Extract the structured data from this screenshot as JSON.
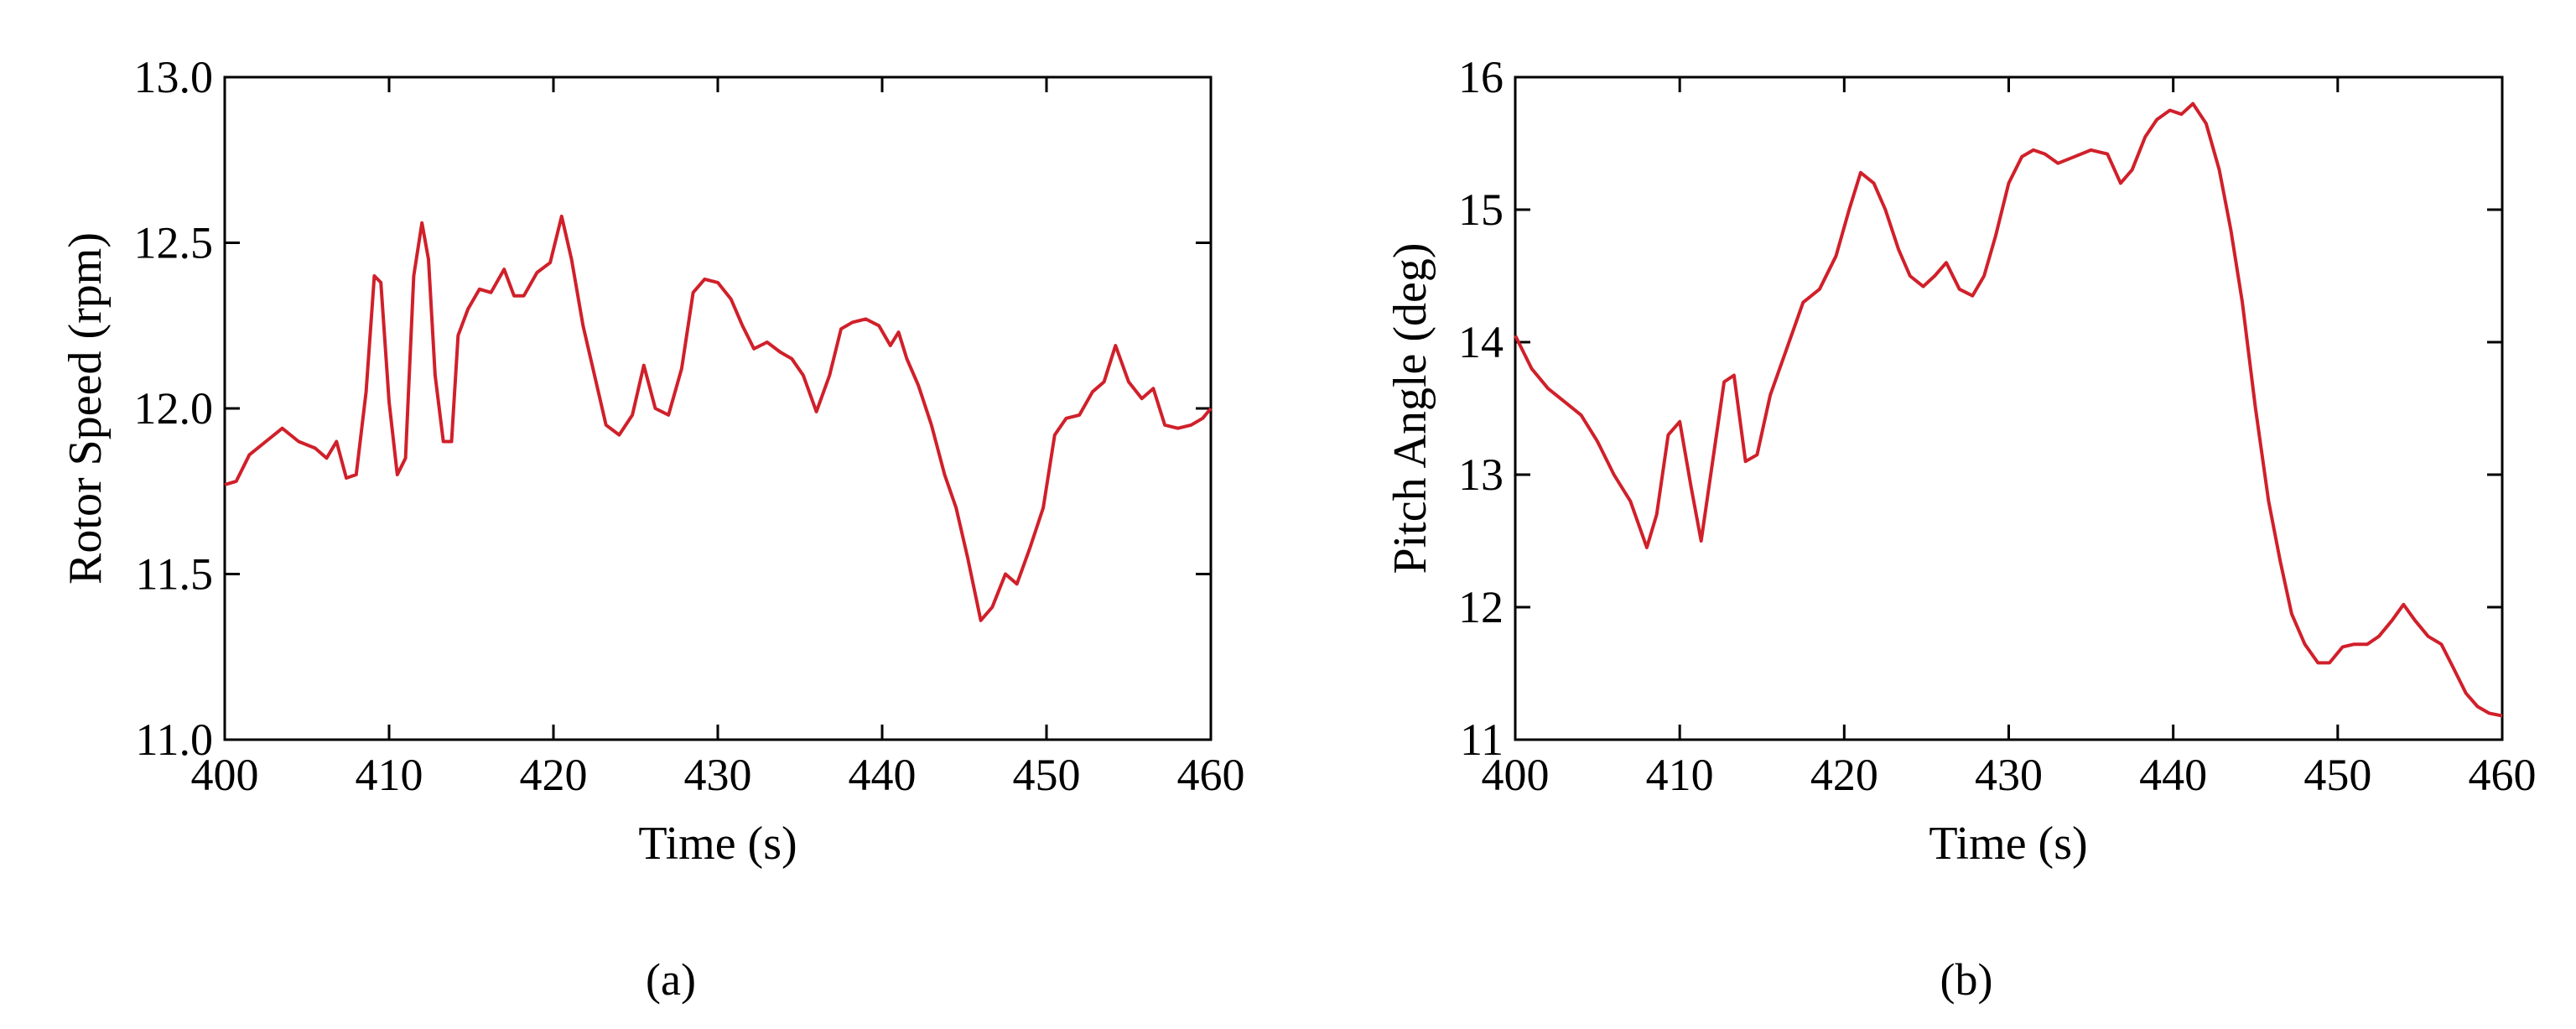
{
  "chart_data": [
    {
      "type": "line",
      "caption": "(a)",
      "xlabel": "Time (s)",
      "ylabel": "Rotor Speed (rpm)",
      "xlim": [
        400,
        460
      ],
      "ylim": [
        11.0,
        13.0
      ],
      "xticks": [
        "400",
        "410",
        "420",
        "430",
        "440",
        "450",
        "460"
      ],
      "yticks": [
        "11.0",
        "11.5",
        "12.0",
        "12.5",
        "13.0"
      ],
      "color": "#d0202a",
      "series": [
        {
          "x": [
            400,
            400.7,
            401.5,
            402.5,
            403.5,
            404.5,
            405.5,
            406.2,
            406.8,
            407.4,
            408.0,
            408.6,
            409.1,
            409.5,
            410.0,
            410.5,
            411.0,
            411.5,
            412.0,
            412.4,
            412.8,
            413.3,
            413.8,
            414.2,
            414.8,
            415.5,
            416.2,
            417.0,
            417.6,
            418.2,
            419.0,
            419.8,
            420.5,
            421.1,
            421.8,
            422.5,
            423.2,
            424.0,
            424.8,
            425.5,
            426.2,
            427.0,
            427.8,
            428.5,
            429.2,
            430.0,
            430.8,
            431.5,
            432.2,
            433.0,
            433.8,
            434.5,
            435.2,
            436.0,
            436.8,
            437.5,
            438.2,
            439.0,
            439.8,
            440.5,
            441.0,
            441.5,
            442.2,
            443.0,
            443.8,
            444.5,
            445.2,
            446.0,
            446.7,
            447.5,
            448.2,
            449.0,
            449.8,
            450.5,
            451.2,
            452.0,
            452.8,
            453.5,
            454.2,
            455.0,
            455.8,
            456.5,
            457.2,
            458.0,
            458.8,
            459.5,
            460.0
          ],
          "y": [
            11.77,
            11.78,
            11.86,
            11.9,
            11.94,
            11.9,
            11.88,
            11.85,
            11.9,
            11.79,
            11.8,
            12.05,
            12.4,
            12.38,
            12.02,
            11.8,
            11.85,
            12.4,
            12.56,
            12.45,
            12.1,
            11.9,
            11.9,
            12.22,
            12.3,
            12.36,
            12.35,
            12.42,
            12.34,
            12.34,
            12.41,
            12.44,
            12.58,
            12.45,
            12.25,
            12.1,
            11.95,
            11.92,
            11.98,
            12.13,
            12.0,
            11.98,
            12.12,
            12.35,
            12.39,
            12.38,
            12.33,
            12.25,
            12.18,
            12.2,
            12.17,
            12.15,
            12.1,
            11.99,
            12.1,
            12.24,
            12.26,
            12.27,
            12.25,
            12.19,
            12.23,
            12.15,
            12.07,
            11.95,
            11.8,
            11.7,
            11.55,
            11.36,
            11.4,
            11.5,
            11.47,
            11.58,
            11.7,
            11.92,
            11.97,
            11.98,
            12.05,
            12.08,
            12.19,
            12.08,
            12.03,
            12.06,
            11.95,
            11.94,
            11.95,
            11.97,
            12.0
          ]
        }
      ]
    },
    {
      "type": "line",
      "caption": "(b)",
      "xlabel": "Time (s)",
      "ylabel": "Pitch Angle (deg)",
      "xlim": [
        400,
        460
      ],
      "ylim": [
        11,
        16
      ],
      "xticks": [
        "400",
        "410",
        "420",
        "430",
        "440",
        "450",
        "460"
      ],
      "yticks": [
        "11",
        "12",
        "13",
        "14",
        "15",
        "16"
      ],
      "color": "#d0202a",
      "series": [
        {
          "x": [
            400,
            401.0,
            402.0,
            403.0,
            404.0,
            405.0,
            406.0,
            407.0,
            408.0,
            408.6,
            409.3,
            410.0,
            410.7,
            411.3,
            412.0,
            412.7,
            413.3,
            414.0,
            414.7,
            415.5,
            416.5,
            417.5,
            418.5,
            419.5,
            420.3,
            421.0,
            421.8,
            422.5,
            423.3,
            424.0,
            424.8,
            425.5,
            426.2,
            427.0,
            427.8,
            428.5,
            429.2,
            430.0,
            430.8,
            431.5,
            432.2,
            433.0,
            434.0,
            435.0,
            436.0,
            436.8,
            437.5,
            438.3,
            439.0,
            439.8,
            440.5,
            441.2,
            442.0,
            442.8,
            443.5,
            444.2,
            445.0,
            445.8,
            446.5,
            447.2,
            448.0,
            448.8,
            449.5,
            450.3,
            451.0,
            451.8,
            452.5,
            453.3,
            454.0,
            454.7,
            455.5,
            456.3,
            457.0,
            457.8,
            458.5,
            459.2,
            460.0
          ],
          "y": [
            14.05,
            13.8,
            13.65,
            13.55,
            13.45,
            13.25,
            13.0,
            12.8,
            12.45,
            12.7,
            13.3,
            13.4,
            12.9,
            12.5,
            13.1,
            13.7,
            13.75,
            13.1,
            13.15,
            13.6,
            13.95,
            14.3,
            14.4,
            14.65,
            15.0,
            15.28,
            15.2,
            15.0,
            14.7,
            14.5,
            14.42,
            14.5,
            14.6,
            14.4,
            14.35,
            14.5,
            14.8,
            15.2,
            15.4,
            15.45,
            15.42,
            15.35,
            15.4,
            15.45,
            15.42,
            15.2,
            15.3,
            15.55,
            15.68,
            15.75,
            15.72,
            15.8,
            15.65,
            15.3,
            14.85,
            14.3,
            13.5,
            12.8,
            12.35,
            11.95,
            11.72,
            11.58,
            11.58,
            11.7,
            11.72,
            11.72,
            11.78,
            11.9,
            12.02,
            11.9,
            11.78,
            11.72,
            11.55,
            11.35,
            11.25,
            11.2,
            11.18
          ]
        }
      ]
    }
  ]
}
